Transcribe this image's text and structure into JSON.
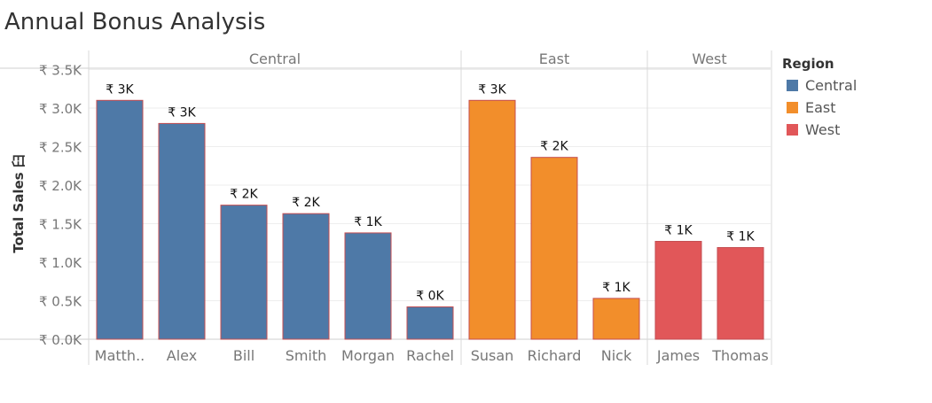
{
  "title": "Annual Bonus Analysis",
  "chart_data": {
    "type": "bar",
    "ylabel": "Total Sales",
    "ylabel_suffix": "⾅",
    "ylim": [
      0,
      3500
    ],
    "yticks": [
      0,
      500,
      1000,
      1500,
      2000,
      2500,
      3000,
      3500
    ],
    "ytick_labels": [
      "₹ 0.0K",
      "₹ 0.5K",
      "₹ 1.0K",
      "₹ 1.5K",
      "₹ 2.0K",
      "₹ 2.5K",
      "₹ 3.0K",
      "₹ 3.5K"
    ],
    "grid": true,
    "panels": [
      {
        "name": "Central",
        "color": "#4e79a7",
        "bars": [
          {
            "label": "Matth..",
            "value": 3100,
            "data_label": "₹ 3K"
          },
          {
            "label": "Alex",
            "value": 2800,
            "data_label": "₹ 3K"
          },
          {
            "label": "Bill",
            "value": 1740,
            "data_label": "₹ 2K"
          },
          {
            "label": "Smith",
            "value": 1630,
            "data_label": "₹ 2K"
          },
          {
            "label": "Morgan",
            "value": 1380,
            "data_label": "₹ 1K"
          },
          {
            "label": "Rachel",
            "value": 420,
            "data_label": "₹ 0K"
          }
        ]
      },
      {
        "name": "East",
        "color": "#f28e2b",
        "bars": [
          {
            "label": "Susan",
            "value": 3100,
            "data_label": "₹ 3K"
          },
          {
            "label": "Richard",
            "value": 2360,
            "data_label": "₹ 2K"
          },
          {
            "label": "Nick",
            "value": 530,
            "data_label": "₹ 1K"
          }
        ]
      },
      {
        "name": "West",
        "color": "#e15759",
        "bars": [
          {
            "label": "James",
            "value": 1270,
            "data_label": "₹ 1K"
          },
          {
            "label": "Thomas",
            "value": 1190,
            "data_label": "₹ 1K"
          }
        ]
      }
    ],
    "legend": {
      "title": "Region",
      "position": "right",
      "items": [
        {
          "label": "Central",
          "color": "#4e79a7"
        },
        {
          "label": "East",
          "color": "#f28e2b"
        },
        {
          "label": "West",
          "color": "#e15759"
        }
      ]
    }
  }
}
